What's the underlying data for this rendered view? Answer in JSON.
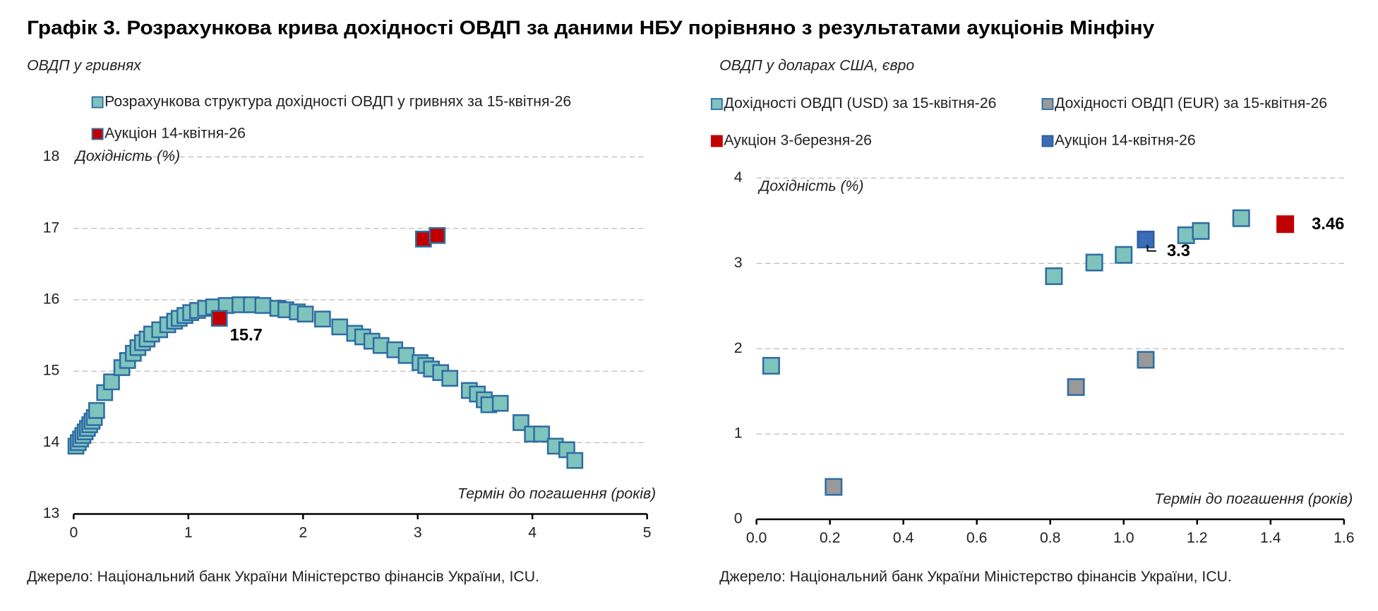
{
  "title": "Графік 3. Розрахункова крива дохідності ОВДП за даними НБУ порівняно з результатами аукціонів Мінфіну",
  "chart_data": [
    {
      "type": "scatter",
      "subtitle": "ОВДП у гривнях",
      "y_label": "Дохідність (%)",
      "x_label": "Термін до погашення (років)",
      "xlim": [
        0,
        5
      ],
      "ylim": [
        13,
        18
      ],
      "xticks": [
        0,
        1,
        2,
        3,
        4,
        5
      ],
      "yticks": [
        13,
        14,
        15,
        16,
        17,
        18
      ],
      "grid": true,
      "series": [
        {
          "name": "Розрахункова структура дохідності ОВДП у гривнях за 15-квітня-26",
          "color": "#7fc4bc",
          "edge_color": "#2e6ca4",
          "x": [
            0.02,
            0.04,
            0.06,
            0.08,
            0.1,
            0.12,
            0.14,
            0.16,
            0.18,
            0.2,
            0.27,
            0.33,
            0.42,
            0.47,
            0.52,
            0.56,
            0.6,
            0.64,
            0.68,
            0.75,
            0.82,
            0.88,
            0.92,
            0.97,
            1.02,
            1.08,
            1.15,
            1.22,
            1.33,
            1.45,
            1.55,
            1.65,
            1.78,
            1.85,
            1.95,
            2.02,
            2.17,
            2.32,
            2.45,
            2.52,
            2.6,
            2.68,
            2.8,
            2.9,
            3.02,
            3.07,
            3.12,
            3.2,
            3.28,
            3.45,
            3.52,
            3.58,
            3.62,
            3.72,
            3.9,
            4.0,
            4.08,
            4.2,
            4.3,
            4.37
          ],
          "values": [
            13.95,
            14.0,
            14.05,
            14.1,
            14.15,
            14.2,
            14.25,
            14.3,
            14.35,
            14.45,
            14.7,
            14.85,
            15.05,
            15.15,
            15.25,
            15.33,
            15.4,
            15.45,
            15.52,
            15.58,
            15.65,
            15.7,
            15.74,
            15.78,
            15.82,
            15.85,
            15.88,
            15.9,
            15.92,
            15.93,
            15.93,
            15.92,
            15.88,
            15.86,
            15.83,
            15.8,
            15.73,
            15.62,
            15.53,
            15.48,
            15.42,
            15.36,
            15.3,
            15.22,
            15.12,
            15.08,
            15.03,
            14.98,
            14.9,
            14.73,
            14.68,
            14.6,
            14.53,
            14.55,
            14.28,
            14.12,
            14.12,
            13.95,
            13.9,
            13.75
          ]
        },
        {
          "name": "Аукціон 14-квітня-26",
          "color": "#c00000",
          "edge_color": "#2e6ca4",
          "x": [
            1.27,
            3.05,
            3.17
          ],
          "values": [
            15.74,
            16.85,
            16.9
          ],
          "value_labels": [
            "15.7",
            null,
            null
          ]
        }
      ],
      "source": "Джерело: Національний банк України Міністерство фінансів України, ICU."
    },
    {
      "type": "scatter",
      "subtitle": "ОВДП у доларах США, євро",
      "y_label": "Дохідність (%)",
      "x_label": "Термін до погашення (років)",
      "xlim": [
        0,
        1.6
      ],
      "ylim": [
        0,
        4
      ],
      "xticks": [
        {
          "value": 0,
          "label": "0.0"
        },
        {
          "value": 0.2,
          "label": "0.2"
        },
        {
          "value": 0.4,
          "label": "0.4"
        },
        {
          "value": 0.6,
          "label": "0.6"
        },
        {
          "value": 0.8,
          "label": "0.8"
        },
        {
          "value": 1,
          "label": "1.0"
        },
        {
          "value": 1.2,
          "label": "1.2"
        },
        {
          "value": 1.4,
          "label": "1.4"
        },
        {
          "value": 1.6,
          "label": "1.6"
        }
      ],
      "yticks": [
        0,
        1,
        2,
        3,
        4
      ],
      "grid": true,
      "series": [
        {
          "name": "Дохідності ОВДП (USD) за 15-квітня-26",
          "color": "#7fc4bc",
          "edge_color": "#2e6ca4",
          "x": [
            0.04,
            0.81,
            0.92,
            1.0,
            1.17,
            1.21,
            1.32
          ],
          "values": [
            1.8,
            2.85,
            3.01,
            3.1,
            3.33,
            3.38,
            3.53
          ]
        },
        {
          "name": "Дохідності ОВДП (EUR) за 15-квітня-26",
          "color": "#999999",
          "edge_color": "#2e6ca4",
          "x": [
            0.21,
            0.87,
            1.06
          ],
          "values": [
            0.38,
            1.55,
            1.87
          ]
        },
        {
          "name": "Аукціон 3-березня-26",
          "color": "#c00000",
          "edge_color": "#c00000",
          "x": [
            1.44
          ],
          "values": [
            3.46
          ],
          "value_labels": [
            "3.46"
          ]
        },
        {
          "name": "Аукціон 14-квітня-26",
          "color": "#3a6db5",
          "edge_color": "#2e5d9e",
          "x": [
            1.06
          ],
          "values": [
            3.28
          ],
          "value_labels": [
            "3.3"
          ]
        }
      ],
      "source": "Джерело: Національний банк України Міністерство фінансів України, ICU."
    }
  ]
}
